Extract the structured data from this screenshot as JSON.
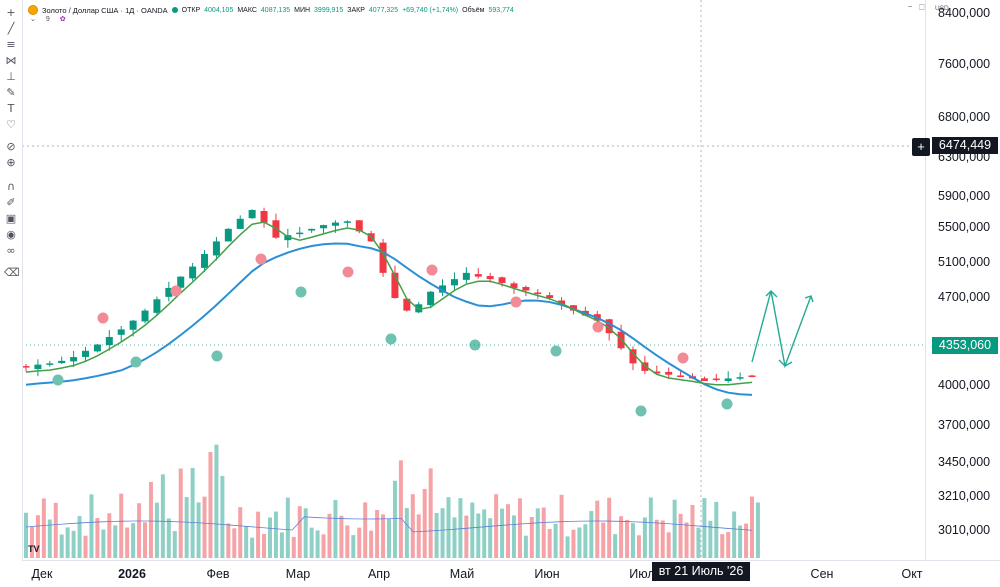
{
  "legend": {
    "symbol": "Золото / Доллар США · 1Д · OANDA",
    "open_label": "ОТКР",
    "open": "4004,105",
    "high_label": "МАКС",
    "high": "4087,135",
    "low_label": "МИН",
    "low": "3999,915",
    "close_label": "ЗАКР",
    "close": "4077,325",
    "change": "+69,740 (+1,74%)",
    "volume_label": "Объём",
    "volume": "593,774",
    "sub_value": "9"
  },
  "currency": "USD",
  "price_axis": [
    "8400,000",
    "7600,000",
    "6800,000",
    "6300,000",
    "5900,000",
    "5500,000",
    "5100,000",
    "4700,000",
    "4000,000",
    "3700,000",
    "3450,000",
    "3210,000",
    "3010,000"
  ],
  "crosshair_price": "6474,449",
  "last_price": "4353,060",
  "time_axis": [
    {
      "label": "Дек",
      "bold": false
    },
    {
      "label": "2026",
      "bold": true
    },
    {
      "label": "Фев",
      "bold": false
    },
    {
      "label": "Мар",
      "bold": false
    },
    {
      "label": "Апр",
      "bold": false
    },
    {
      "label": "Май",
      "bold": false
    },
    {
      "label": "Июн",
      "bold": false
    },
    {
      "label": "Июл",
      "bold": false
    },
    {
      "label": "Сен",
      "bold": false
    },
    {
      "label": "Окт",
      "bold": false
    }
  ],
  "crosshair_date": "вт 21 Июль '26",
  "colors": {
    "up": "#089981",
    "down": "#f23645",
    "ma_fast": "#43a047",
    "ma_slow": "#2a8fd4",
    "vol_up": "#8fd0c6",
    "vol_down": "#f5a3a6",
    "forecast": "#22ab94",
    "marker_up": "#f28b96",
    "marker_down": "#6fc2b0"
  },
  "icons": [
    "crosshair-icon",
    "trendline-icon",
    "fib-icon",
    "pattern-icon",
    "projection-icon",
    "brush-icon",
    "text-icon",
    "heart-icon",
    "ruler-icon",
    "zoom-icon",
    "magnet-icon",
    "lock-draw-icon",
    "lock-icon",
    "eye-icon",
    "link-icon",
    "trash-icon"
  ],
  "chart_data": {
    "type": "candlestick",
    "ylabel": "USD",
    "x": [
      "Дек",
      "2026",
      "Фев",
      "Мар",
      "Апр",
      "Май",
      "Июн",
      "Июл",
      "Сен",
      "Окт"
    ],
    "close_path": [
      4150,
      4170,
      4180,
      4200,
      4230,
      4280,
      4330,
      4390,
      4450,
      4520,
      4600,
      4690,
      4780,
      4870,
      4950,
      5050,
      5150,
      5250,
      5330,
      5400,
      5300,
      5180,
      5200,
      5220,
      5250,
      5280,
      5300,
      5310,
      5230,
      5150,
      4900,
      4700,
      4600,
      4650,
      4750,
      4800,
      4850,
      4900,
      4870,
      4850,
      4820,
      4780,
      4760,
      4740,
      4700,
      4650,
      4600,
      4560,
      4520,
      4420,
      4300,
      4180,
      4120,
      4100,
      4090,
      4080,
      4060,
      4040,
      4050,
      4060,
      4070,
      4077
    ],
    "last_close": 4077.325,
    "current_price": 4353.06,
    "crosshair_price": 6474.449
  }
}
